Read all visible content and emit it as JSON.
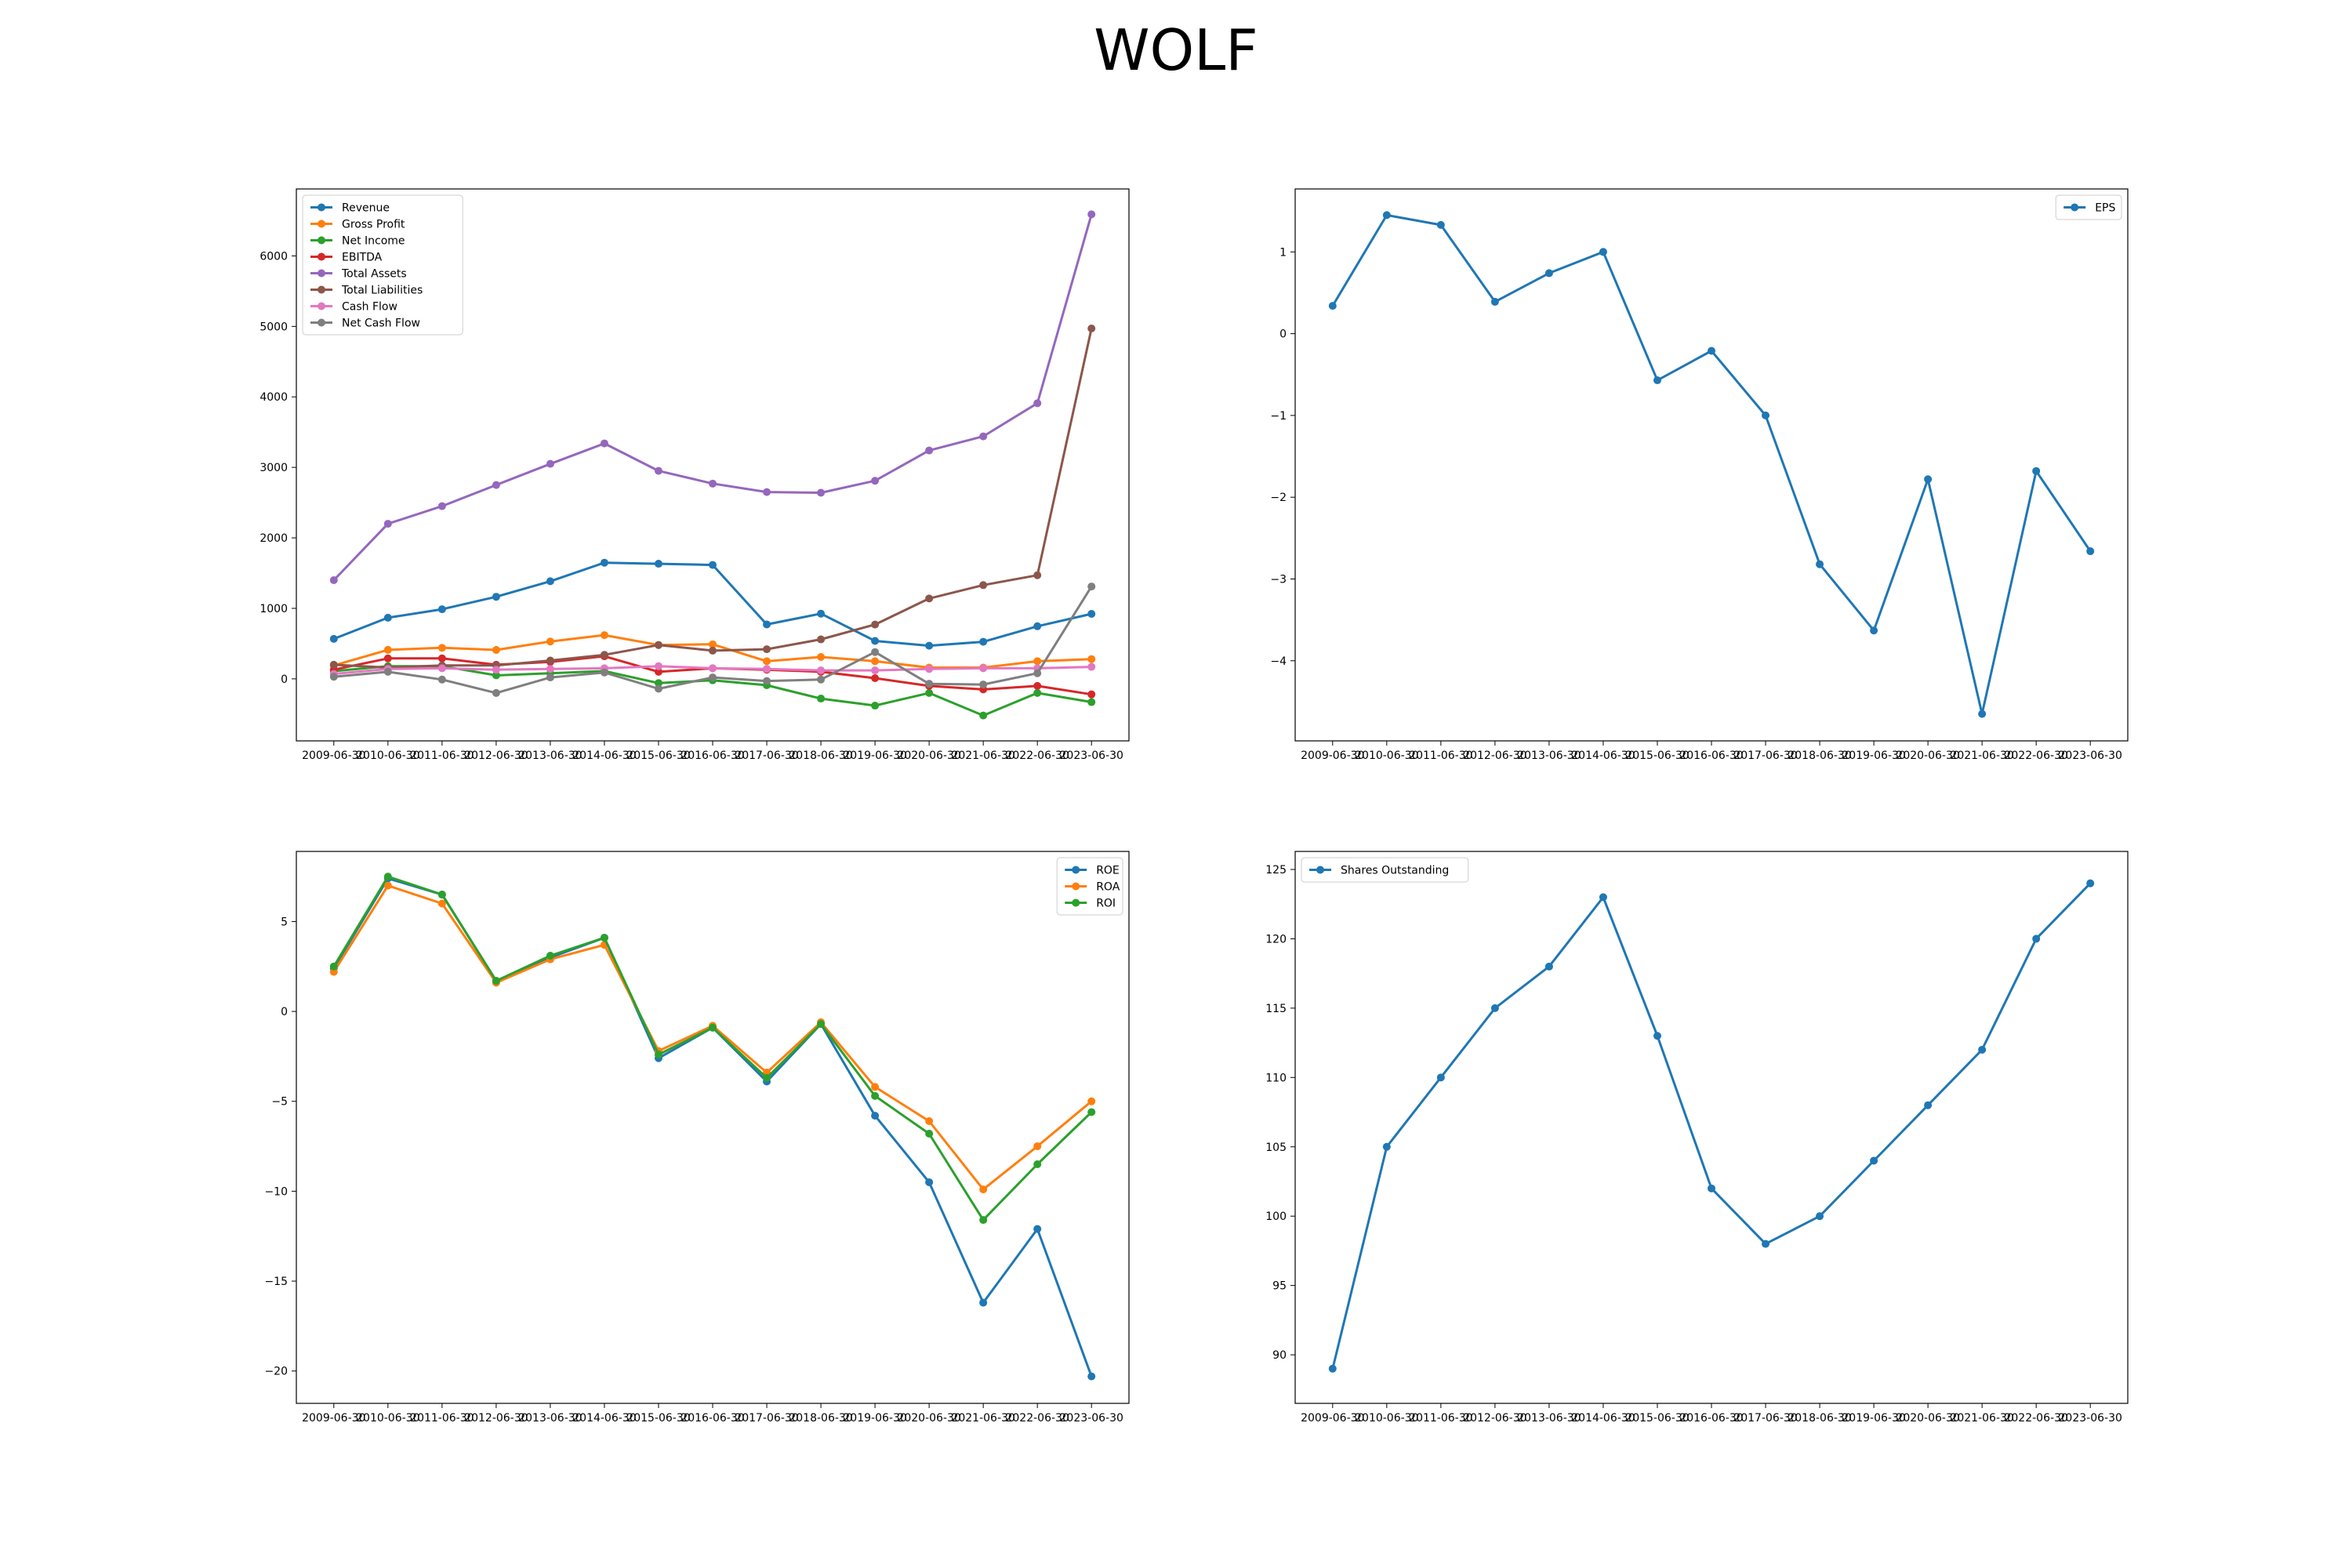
{
  "title": "WOLF",
  "chart_data": [
    {
      "type": "line",
      "categories": [
        "2009-06-30",
        "2010-06-30",
        "2011-06-30",
        "2012-06-30",
        "2013-06-30",
        "2014-06-30",
        "2015-06-30",
        "2016-06-30",
        "2017-06-30",
        "2018-06-30",
        "2019-06-30",
        "2020-06-30",
        "2021-06-30",
        "2022-06-30",
        "2023-06-30"
      ],
      "ylim": [
        -880,
        6950
      ],
      "yticks": [
        0,
        1000,
        2000,
        3000,
        4000,
        5000,
        6000
      ],
      "legend": "upper left",
      "series": [
        {
          "name": "Revenue",
          "color": "#1f77b4",
          "values": [
            567,
            867,
            987,
            1164,
            1385,
            1648,
            1633,
            1616,
            772,
            925,
            538,
            470,
            526,
            746,
            922
          ]
        },
        {
          "name": "Gross Profit",
          "color": "#ff7f0e",
          "values": [
            190,
            411,
            440,
            410,
            530,
            620,
            480,
            490,
            250,
            310,
            250,
            160,
            160,
            250,
            280
          ]
        },
        {
          "name": "Net Income",
          "color": "#2ca02c",
          "values": [
            110,
            180,
            180,
            50,
            80,
            110,
            -60,
            -20,
            -90,
            -280,
            -380,
            -200,
            -520,
            -200,
            -330
          ]
        },
        {
          "name": "EBITDA",
          "color": "#d62728",
          "values": [
            130,
            290,
            290,
            200,
            240,
            320,
            100,
            150,
            130,
            100,
            10,
            -100,
            -150,
            -100,
            -220
          ]
        },
        {
          "name": "Total Assets",
          "color": "#9467bd",
          "values": [
            1400,
            2200,
            2450,
            2750,
            3050,
            3340,
            2950,
            2770,
            2650,
            2640,
            2810,
            3240,
            3440,
            3910,
            6590
          ]
        },
        {
          "name": "Total Liabilities",
          "color": "#8c564b",
          "values": [
            200,
            160,
            190,
            190,
            260,
            340,
            480,
            400,
            420,
            560,
            770,
            1140,
            1330,
            1470,
            4970
          ]
        },
        {
          "name": "Cash Flow",
          "color": "#e377c2",
          "values": [
            70,
            140,
            150,
            130,
            140,
            150,
            180,
            150,
            140,
            120,
            120,
            140,
            150,
            150,
            170
          ]
        },
        {
          "name": "Net Cash Flow",
          "color": "#7f7f7f",
          "values": [
            30,
            100,
            -10,
            -200,
            20,
            90,
            -140,
            20,
            -30,
            -10,
            380,
            -70,
            -80,
            80,
            1310
          ]
        }
      ]
    },
    {
      "type": "line",
      "categories": [
        "2009-06-30",
        "2010-06-30",
        "2011-06-30",
        "2012-06-30",
        "2013-06-30",
        "2014-06-30",
        "2015-06-30",
        "2016-06-30",
        "2017-06-30",
        "2018-06-30",
        "2019-06-30",
        "2020-06-30",
        "2021-06-30",
        "2022-06-30",
        "2023-06-30"
      ],
      "ylim": [
        -4.98,
        1.77
      ],
      "yticks": [
        -4,
        -3,
        -2,
        -1,
        0,
        1
      ],
      "legend": "upper right",
      "series": [
        {
          "name": "EPS",
          "color": "#1f77b4",
          "values": [
            0.34,
            1.45,
            1.33,
            0.39,
            0.74,
            1.0,
            -0.57,
            -0.21,
            -1.0,
            -2.82,
            -3.63,
            -1.78,
            -4.65,
            -1.68,
            -2.66
          ]
        }
      ]
    },
    {
      "type": "line",
      "categories": [
        "2009-06-30",
        "2010-06-30",
        "2011-06-30",
        "2012-06-30",
        "2013-06-30",
        "2014-06-30",
        "2015-06-30",
        "2016-06-30",
        "2017-06-30",
        "2018-06-30",
        "2019-06-30",
        "2020-06-30",
        "2021-06-30",
        "2022-06-30",
        "2023-06-30"
      ],
      "ylim": [
        -21.8,
        8.9
      ],
      "yticks": [
        -20,
        -15,
        -10,
        -5,
        0,
        5
      ],
      "legend": "upper right",
      "series": [
        {
          "name": "ROE",
          "color": "#1f77b4",
          "values": [
            2.4,
            7.4,
            6.5,
            1.7,
            3.0,
            4.1,
            -2.6,
            -0.9,
            -3.9,
            -0.7,
            -5.8,
            -9.5,
            -16.2,
            -12.1,
            -20.3
          ]
        },
        {
          "name": "ROA",
          "color": "#ff7f0e",
          "values": [
            2.2,
            7.0,
            6.0,
            1.6,
            2.9,
            3.7,
            -2.2,
            -0.8,
            -3.4,
            -0.6,
            -4.2,
            -6.1,
            -9.9,
            -7.5,
            -5.0
          ]
        },
        {
          "name": "ROI",
          "color": "#2ca02c",
          "values": [
            2.5,
            7.5,
            6.5,
            1.7,
            3.1,
            4.1,
            -2.4,
            -0.9,
            -3.7,
            -0.7,
            -4.7,
            -6.8,
            -11.6,
            -8.5,
            -5.6
          ]
        }
      ]
    },
    {
      "type": "line",
      "categories": [
        "2009-06-30",
        "2010-06-30",
        "2011-06-30",
        "2012-06-30",
        "2013-06-30",
        "2014-06-30",
        "2015-06-30",
        "2016-06-30",
        "2017-06-30",
        "2018-06-30",
        "2019-06-30",
        "2020-06-30",
        "2021-06-30",
        "2022-06-30",
        "2023-06-30"
      ],
      "ylim": [
        86.5,
        126.3
      ],
      "yticks": [
        90,
        95,
        100,
        105,
        110,
        115,
        120,
        125
      ],
      "legend": "upper left",
      "series": [
        {
          "name": "Shares Outstanding",
          "color": "#1f77b4",
          "values": [
            89,
            105,
            110,
            115,
            118,
            123,
            113,
            102,
            98,
            100,
            104,
            108,
            112,
            120,
            124
          ]
        }
      ]
    }
  ]
}
